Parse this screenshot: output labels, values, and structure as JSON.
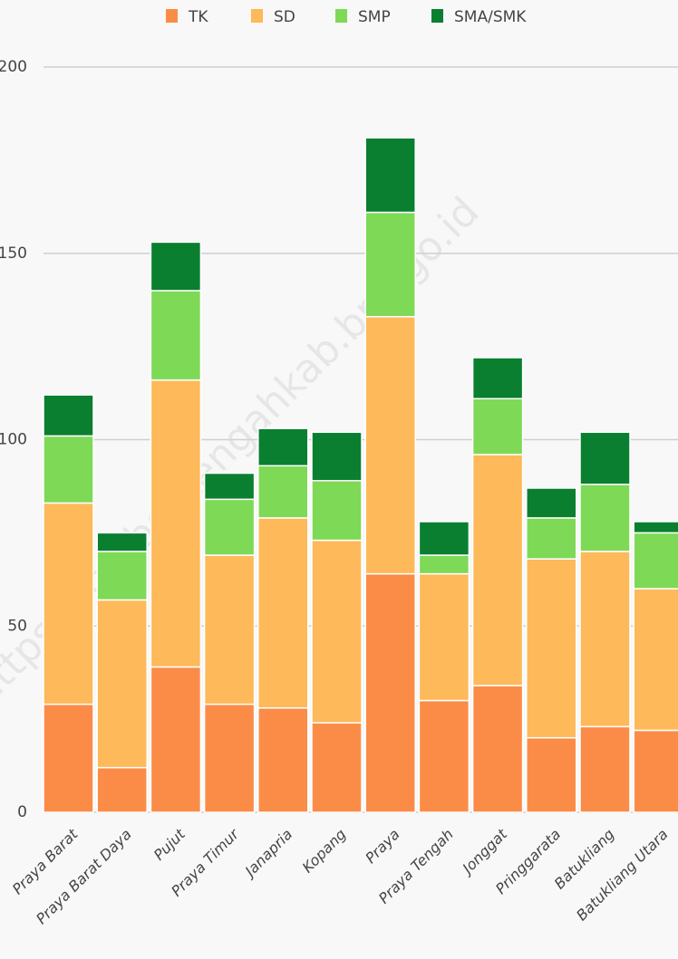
{
  "chart_data": {
    "type": "stacked_bar",
    "categories": [
      "Praya Barat",
      "Praya Barat Daya",
      "Pujut",
      "Praya Timur",
      "Janapria",
      "Kopang",
      "Praya",
      "Praya Tengah",
      "Jonggat",
      "Pringgarata",
      "Batukliang",
      "Batukliang Utara"
    ],
    "series": [
      {
        "name": "TK",
        "color": "#fb8c47",
        "values": [
          29,
          12,
          39,
          29,
          28,
          24,
          64,
          30,
          34,
          20,
          23,
          22
        ]
      },
      {
        "name": "SD",
        "color": "#fdb95a",
        "values": [
          54,
          45,
          77,
          40,
          51,
          49,
          69,
          34,
          62,
          48,
          47,
          38
        ]
      },
      {
        "name": "SMP",
        "color": "#7ed957",
        "values": [
          18,
          13,
          24,
          15,
          14,
          16,
          28,
          5,
          15,
          11,
          18,
          15
        ]
      },
      {
        "name": "SMA/SMK",
        "color": "#0a7f30",
        "values": [
          11,
          5,
          13,
          7,
          10,
          13,
          20,
          9,
          11,
          8,
          14,
          3
        ]
      }
    ],
    "ylim": [
      0,
      200
    ],
    "yticks": [
      0,
      50,
      100,
      150,
      200
    ],
    "grid": true,
    "legend": "top",
    "watermark": "https://lomboktengahkab.bps.go.id"
  }
}
